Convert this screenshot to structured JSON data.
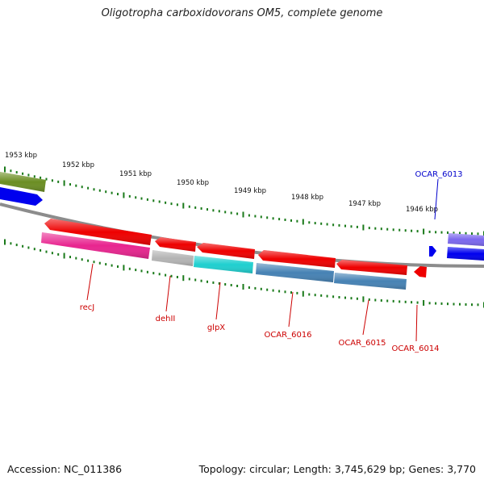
{
  "title": "Oligotropha carboxidovorans OM5, complete genome",
  "footer": {
    "accession": "Accession: NC_011386",
    "summary": "Topology: circular; Length: 3,745,629 bp; Genes: 3,770"
  },
  "colors": {
    "backbone": "#8c8c8c",
    "tick": "#1a7a1a",
    "red_label": "#cc0000",
    "blue_label": "#0000cc"
  },
  "scale_labels": [
    {
      "kbp": 1953,
      "text": "1953 kbp"
    },
    {
      "kbp": 1952,
      "text": "1952 kbp"
    },
    {
      "kbp": 1951,
      "text": "1951 kbp"
    },
    {
      "kbp": 1950,
      "text": "1950 kbp"
    },
    {
      "kbp": 1949,
      "text": "1949 kbp"
    },
    {
      "kbp": 1948,
      "text": "1948 kbp"
    },
    {
      "kbp": 1947,
      "text": "1947 kbp"
    },
    {
      "kbp": 1946,
      "text": "1946 kbp"
    }
  ],
  "gene_labels": [
    {
      "id": "recJ",
      "text": "recJ",
      "color": "#cc0000"
    },
    {
      "id": "dehII",
      "text": "dehII",
      "color": "#cc0000"
    },
    {
      "id": "glpX",
      "text": "glpX",
      "color": "#cc0000"
    },
    {
      "id": "ocar6016",
      "text": "OCAR_6016",
      "color": "#cc0000"
    },
    {
      "id": "ocar6015",
      "text": "OCAR_6015",
      "color": "#cc0000"
    },
    {
      "id": "ocar6014",
      "text": "OCAR_6014",
      "color": "#cc0000"
    },
    {
      "id": "ocar6013",
      "text": "OCAR_6013",
      "color": "#0000cc"
    }
  ],
  "features": [
    {
      "id": "f-olive-left",
      "color": "#6b8e23"
    },
    {
      "id": "f-blue-left",
      "color": "#0000ee"
    },
    {
      "id": "f-recJ",
      "color": "#ee0000"
    },
    {
      "id": "f-recJ-cog",
      "color": "#e8258f"
    },
    {
      "id": "f-dehII",
      "color": "#ee0000"
    },
    {
      "id": "f-dehII-cog",
      "color": "#b4b4b4"
    },
    {
      "id": "f-glpX",
      "color": "#ee0000"
    },
    {
      "id": "f-glpX-cog",
      "color": "#1fcfcf"
    },
    {
      "id": "f-6016",
      "color": "#ee0000"
    },
    {
      "id": "f-6016-cog",
      "color": "#4682b4"
    },
    {
      "id": "f-6015",
      "color": "#ee0000"
    },
    {
      "id": "f-6015-cog",
      "color": "#4682b4"
    },
    {
      "id": "f-6014",
      "color": "#ee0000"
    },
    {
      "id": "f-6013",
      "color": "#0000ee"
    },
    {
      "id": "f-purple-right",
      "color": "#7b68ee"
    },
    {
      "id": "f-blue-right",
      "color": "#0000ee"
    }
  ]
}
